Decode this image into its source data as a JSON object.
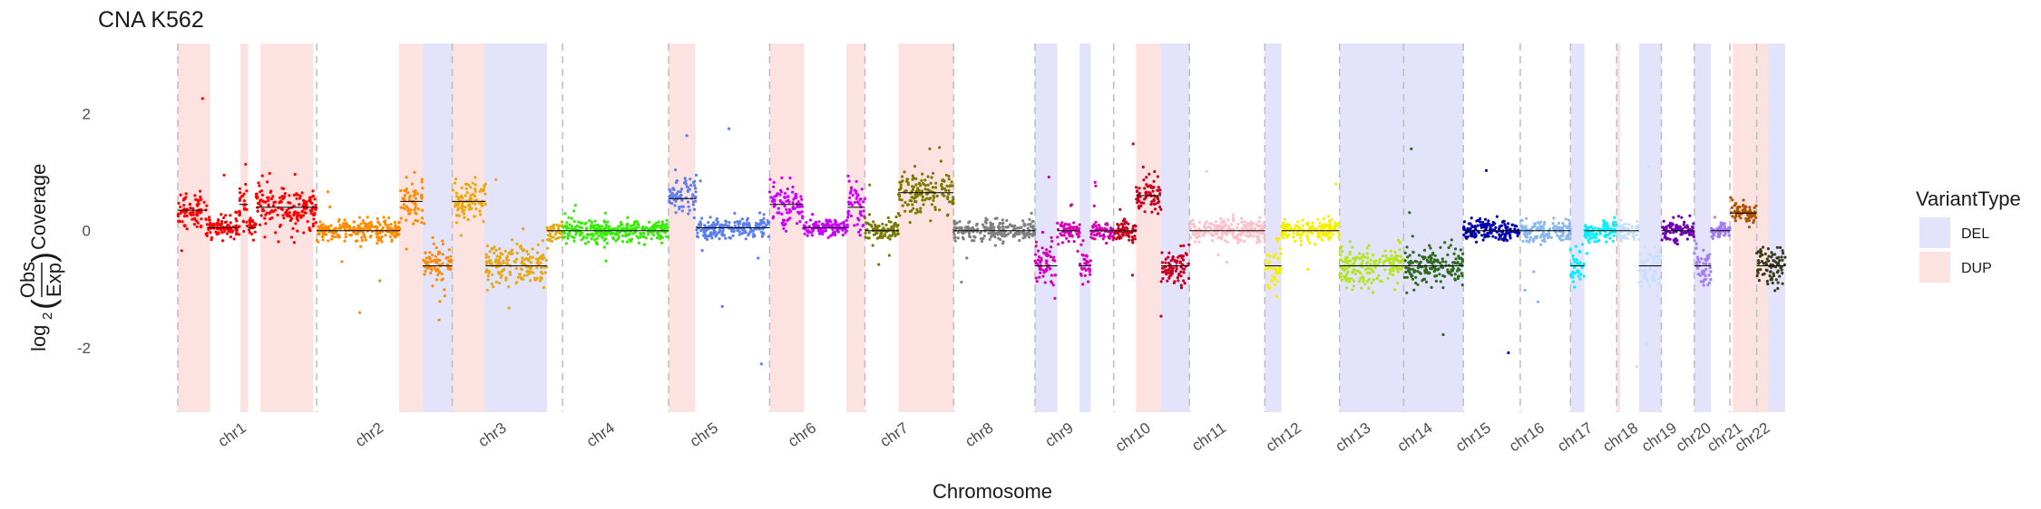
{
  "chart_data": {
    "type": "scatter",
    "title": "CNA K562",
    "xlabel": "Chromosome",
    "ylabel": {
      "prefix": "log",
      "subscript": "2",
      "numerator": "Obs",
      "denominator": "Exp",
      "suffix": "Coverage"
    },
    "ylim": [
      -3.1,
      3.2
    ],
    "yticks": [
      -2,
      0,
      2
    ],
    "legend": {
      "title": "VariantType",
      "placement": "right",
      "entries": [
        {
          "label": "DEL",
          "color": "#e3e3fb"
        },
        {
          "label": "DUP",
          "color": "#fde2e2"
        }
      ]
    },
    "chromosomes": [
      {
        "name": "chr1",
        "length": 249,
        "color": "#ff0000",
        "segments": [
          {
            "from": 0,
            "to": 52,
            "mean": 0.35
          },
          {
            "from": 52,
            "to": 110,
            "mean": 0.05
          },
          {
            "from": 110,
            "to": 126,
            "mean": 0.45
          },
          {
            "from": 126,
            "to": 140,
            "mean": 0.05
          },
          {
            "from": 140,
            "to": 249,
            "mean": 0.4
          }
        ],
        "del": [],
        "dup": [
          [
            0,
            58
          ],
          [
            112,
            126
          ],
          [
            148,
            243
          ]
        ]
      },
      {
        "name": "chr2",
        "length": 243,
        "color": "#ff8c00",
        "segments": [
          {
            "from": 0,
            "to": 150,
            "mean": 0.0
          },
          {
            "from": 150,
            "to": 190,
            "mean": 0.5
          },
          {
            "from": 190,
            "to": 243,
            "mean": -0.6
          }
        ],
        "del": [
          [
            190,
            243
          ]
        ],
        "dup": [
          [
            148,
            190
          ]
        ]
      },
      {
        "name": "chr3",
        "length": 198,
        "color": "#e8a90f",
        "segments": [
          {
            "from": 0,
            "to": 60,
            "mean": 0.5
          },
          {
            "from": 60,
            "to": 170,
            "mean": -0.6
          },
          {
            "from": 170,
            "to": 198,
            "mean": 0.0
          }
        ],
        "del": [
          [
            55,
            170
          ]
        ],
        "dup": [
          [
            0,
            58
          ]
        ]
      },
      {
        "name": "chr4",
        "length": 190,
        "color": "#33ee00",
        "segments": [
          {
            "from": 0,
            "to": 190,
            "mean": 0.0
          }
        ],
        "del": [],
        "dup": []
      },
      {
        "name": "chr5",
        "length": 181,
        "color": "#5b7ff0",
        "segments": [
          {
            "from": 0,
            "to": 50,
            "mean": 0.55
          },
          {
            "from": 50,
            "to": 181,
            "mean": 0.05
          }
        ],
        "del": [],
        "dup": [
          [
            0,
            48
          ]
        ]
      },
      {
        "name": "chr6",
        "length": 171,
        "color": "#cc00ff",
        "segments": [
          {
            "from": 0,
            "to": 60,
            "mean": 0.45
          },
          {
            "from": 60,
            "to": 140,
            "mean": 0.05
          },
          {
            "from": 140,
            "to": 171,
            "mean": 0.4
          }
        ],
        "del": [],
        "dup": [
          [
            0,
            62
          ],
          [
            138,
            171
          ]
        ]
      },
      {
        "name": "chr7",
        "length": 159,
        "color": "#7a7a00",
        "segments": [
          {
            "from": 0,
            "to": 60,
            "mean": 0.0
          },
          {
            "from": 60,
            "to": 159,
            "mean": 0.65
          }
        ],
        "del": [],
        "dup": [
          [
            60,
            159
          ]
        ]
      },
      {
        "name": "chr8",
        "length": 146,
        "color": "#808080",
        "segments": [
          {
            "from": 0,
            "to": 146,
            "mean": 0.0
          }
        ],
        "del": [],
        "dup": []
      },
      {
        "name": "chr9",
        "length": 141,
        "color": "#d400b5",
        "segments": [
          {
            "from": 0,
            "to": 40,
            "mean": -0.6
          },
          {
            "from": 40,
            "to": 80,
            "mean": 0.0
          },
          {
            "from": 80,
            "to": 100,
            "mean": -0.6
          },
          {
            "from": 100,
            "to": 141,
            "mean": 0.0
          }
        ],
        "del": [
          [
            0,
            40
          ],
          [
            80,
            100
          ]
        ],
        "dup": []
      },
      {
        "name": "chr10",
        "length": 136,
        "color": "#c8001e",
        "segments": [
          {
            "from": 0,
            "to": 40,
            "mean": 0.0
          },
          {
            "from": 40,
            "to": 85,
            "mean": 0.6
          },
          {
            "from": 85,
            "to": 136,
            "mean": -0.6
          }
        ],
        "del": [
          [
            85,
            136
          ]
        ],
        "dup": [
          [
            40,
            85
          ]
        ]
      },
      {
        "name": "chr11",
        "length": 135,
        "color": "#ffc0cb",
        "segments": [
          {
            "from": 0,
            "to": 135,
            "mean": 0.0
          }
        ],
        "del": [],
        "dup": []
      },
      {
        "name": "chr12",
        "length": 134,
        "color": "#f5f000",
        "segments": [
          {
            "from": 0,
            "to": 30,
            "mean": -0.6
          },
          {
            "from": 30,
            "to": 134,
            "mean": 0.0
          }
        ],
        "del": [
          [
            0,
            30
          ]
        ],
        "dup": []
      },
      {
        "name": "chr13",
        "length": 115,
        "color": "#b5e61d",
        "segments": [
          {
            "from": 0,
            "to": 115,
            "mean": -0.6
          }
        ],
        "del": [
          [
            0,
            115
          ]
        ],
        "dup": []
      },
      {
        "name": "chr14",
        "length": 107,
        "color": "#2e6b1f",
        "segments": [
          {
            "from": 0,
            "to": 107,
            "mean": -0.6
          }
        ],
        "del": [
          [
            0,
            107
          ]
        ],
        "dup": []
      },
      {
        "name": "chr15",
        "length": 102,
        "color": "#0000b0",
        "segments": [
          {
            "from": 0,
            "to": 102,
            "mean": 0.0
          }
        ],
        "del": [],
        "dup": []
      },
      {
        "name": "chr16",
        "length": 90,
        "color": "#88b8f0",
        "segments": [
          {
            "from": 0,
            "to": 90,
            "mean": 0.0
          }
        ],
        "del": [],
        "dup": []
      },
      {
        "name": "chr17",
        "length": 83,
        "color": "#00f0ff",
        "segments": [
          {
            "from": 0,
            "to": 25,
            "mean": -0.6
          },
          {
            "from": 25,
            "to": 83,
            "mean": 0.0
          }
        ],
        "del": [
          [
            0,
            25
          ]
        ],
        "dup": []
      },
      {
        "name": "chr18",
        "length": 80,
        "color": "#c8e0ff",
        "segments": [
          {
            "from": 0,
            "to": 40,
            "mean": 0.0
          },
          {
            "from": 40,
            "to": 80,
            "mean": -0.6
          }
        ],
        "del": [
          [
            40,
            80
          ]
        ],
        "dup": [
          [
            0,
            6
          ]
        ]
      },
      {
        "name": "chr19",
        "length": 59,
        "color": "#7000b0",
        "segments": [
          {
            "from": 0,
            "to": 59,
            "mean": 0.0
          }
        ],
        "del": [],
        "dup": []
      },
      {
        "name": "chr20",
        "length": 64,
        "color": "#a57cf5",
        "segments": [
          {
            "from": 0,
            "to": 30,
            "mean": -0.6
          },
          {
            "from": 30,
            "to": 64,
            "mean": 0.0
          }
        ],
        "del": [
          [
            0,
            30
          ]
        ],
        "dup": []
      },
      {
        "name": "chr21",
        "length": 48,
        "color": "#b05200",
        "segments": [
          {
            "from": 0,
            "to": 48,
            "mean": 0.3
          }
        ],
        "del": [],
        "dup": [
          [
            5,
            48
          ]
        ]
      },
      {
        "name": "chr22",
        "length": 51,
        "color": "#3a3a18",
        "segments": [
          {
            "from": 0,
            "to": 51,
            "mean": -0.6
          }
        ],
        "del": [
          [
            0,
            51
          ]
        ],
        "dup": [
          [
            0,
            20
          ]
        ]
      }
    ]
  }
}
